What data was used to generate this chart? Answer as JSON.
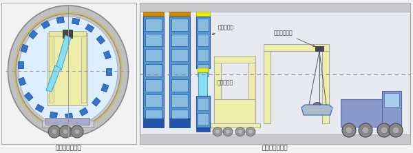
{
  "title_left": "トンネル断面図",
  "title_right": "トンネル側面図",
  "label_erector": "エレクター",
  "label_crane": "門型クレーン",
  "label_feeder": "フィーダー",
  "figsize": [
    6.0,
    2.22
  ],
  "dpi": 100
}
